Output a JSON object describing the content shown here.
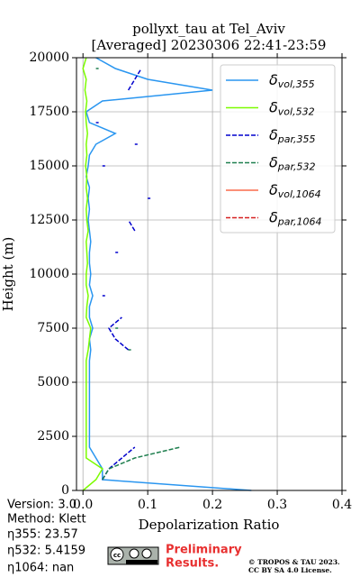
{
  "chart_data": {
    "type": "profile",
    "title": "pollyxt_tau at Tel_Aviv",
    "subtitle": "[Averaged] 20230306 22:41-23:59",
    "x_label": "Depolarization Ratio",
    "y_label": "Height (m)",
    "xlim": [
      -0.01,
      0.4
    ],
    "xticks": [
      {
        "value": 0,
        "label": "0.0"
      },
      0.1,
      0.2,
      0.3,
      0.4
    ],
    "ylim": [
      0,
      20000
    ],
    "yticks": [
      0,
      2500,
      5000,
      7500,
      10000,
      12500,
      15000,
      17500,
      20000
    ],
    "grid": true,
    "legend": "upper right",
    "heights": [
      0,
      500,
      1000,
      1500,
      2000,
      2500,
      3000,
      3500,
      4000,
      4500,
      5000,
      5500,
      6000,
      6500,
      7000,
      7500,
      8000,
      8500,
      9000,
      9500,
      10000,
      10500,
      11000,
      11500,
      12000,
      12500,
      13000,
      13500,
      14000,
      14500,
      15000,
      15500,
      16000,
      16500,
      17000,
      17500,
      18000,
      18500,
      19000,
      19500,
      20000
    ],
    "series": [
      {
        "name": "δvol,355",
        "color": "#2a96f0",
        "dash": false,
        "values": [
          0.26,
          0.03,
          0.03,
          0.02,
          0.01,
          0.01,
          0.01,
          0.01,
          0.01,
          0.01,
          0.01,
          0.01,
          0.01,
          0.012,
          0.01,
          0.015,
          0.01,
          0.01,
          0.015,
          0.01,
          0.012,
          0.01,
          0.01,
          0.012,
          0.01,
          0.008,
          0.01,
          0.008,
          0.01,
          0.005,
          0.008,
          0.01,
          0.02,
          0.05,
          0.01,
          0.005,
          0.03,
          0.2,
          0.1,
          0.05,
          0.02
        ]
      },
      {
        "name": "δvol,532",
        "color": "#7cfc00",
        "dash": false,
        "values": [
          0.0,
          0.02,
          0.03,
          0.005,
          0.005,
          0.005,
          0.005,
          0.005,
          0.005,
          0.005,
          0.005,
          0.005,
          0.005,
          0.008,
          0.01,
          0.012,
          0.005,
          0.006,
          0.008,
          0.005,
          0.005,
          0.007,
          0.006,
          0.005,
          0.008,
          0.006,
          0.005,
          0.007,
          0.005,
          0.006,
          0.004,
          0.006,
          0.005,
          0.007,
          0.005,
          0.004,
          0.006,
          0.003,
          0.005,
          0.0,
          0.005
        ]
      },
      {
        "name": "δpar,355",
        "color": "#0000cd",
        "dash": true,
        "values": [
          null,
          0.03,
          0.04,
          0.06,
          0.08,
          null,
          null,
          null,
          null,
          null,
          null,
          null,
          null,
          0.07,
          0.05,
          0.04,
          0.06,
          null,
          0.03,
          null,
          null,
          null,
          0.05,
          null,
          0.08,
          0.07,
          null,
          0.1,
          null,
          null,
          0.03,
          null,
          0.08,
          null,
          0.02,
          null,
          null,
          0.07,
          0.08,
          0.09,
          null
        ]
      },
      {
        "name": "δpar,532",
        "color": "#1f7f4f",
        "dash": true,
        "values": [
          null,
          0.03,
          0.04,
          0.08,
          0.15,
          null,
          null,
          null,
          null,
          null,
          null,
          null,
          null,
          0.07,
          null,
          0.05,
          null,
          null,
          null,
          null,
          null,
          null,
          null,
          null,
          null,
          null,
          null,
          null,
          null,
          null,
          null,
          null,
          null,
          null,
          null,
          null,
          null,
          null,
          null,
          0.02,
          null
        ]
      },
      {
        "name": "δvol,1064",
        "color": "#fa6c4c",
        "dash": false,
        "values": [
          null,
          null,
          null,
          null,
          null,
          null,
          null,
          null,
          null,
          null,
          null,
          null,
          null,
          null,
          null,
          null,
          null,
          null,
          null,
          null,
          null,
          null,
          null,
          null,
          null,
          null,
          null,
          null,
          null,
          null,
          null,
          null,
          null,
          null,
          null,
          null,
          null,
          null,
          null,
          null,
          null
        ]
      },
      {
        "name": "δpar,1064",
        "color": "#d62020",
        "dash": true,
        "values": [
          null,
          null,
          null,
          null,
          null,
          null,
          null,
          null,
          null,
          null,
          null,
          null,
          null,
          null,
          null,
          null,
          null,
          null,
          null,
          null,
          null,
          null,
          null,
          null,
          null,
          null,
          null,
          null,
          null,
          null,
          null,
          null,
          null,
          null,
          null,
          null,
          null,
          null,
          null,
          null,
          null
        ]
      }
    ]
  },
  "footer": {
    "info": [
      "Version: 3.0",
      "Method: Klett",
      "η355:  23.57",
      "η532: 5.4159",
      "η1064:    nan"
    ],
    "preliminary": [
      "Preliminary",
      "Results."
    ],
    "license": [
      "© TROPOS & TAU 2023.",
      "CC BY SA 4.0 License."
    ]
  }
}
